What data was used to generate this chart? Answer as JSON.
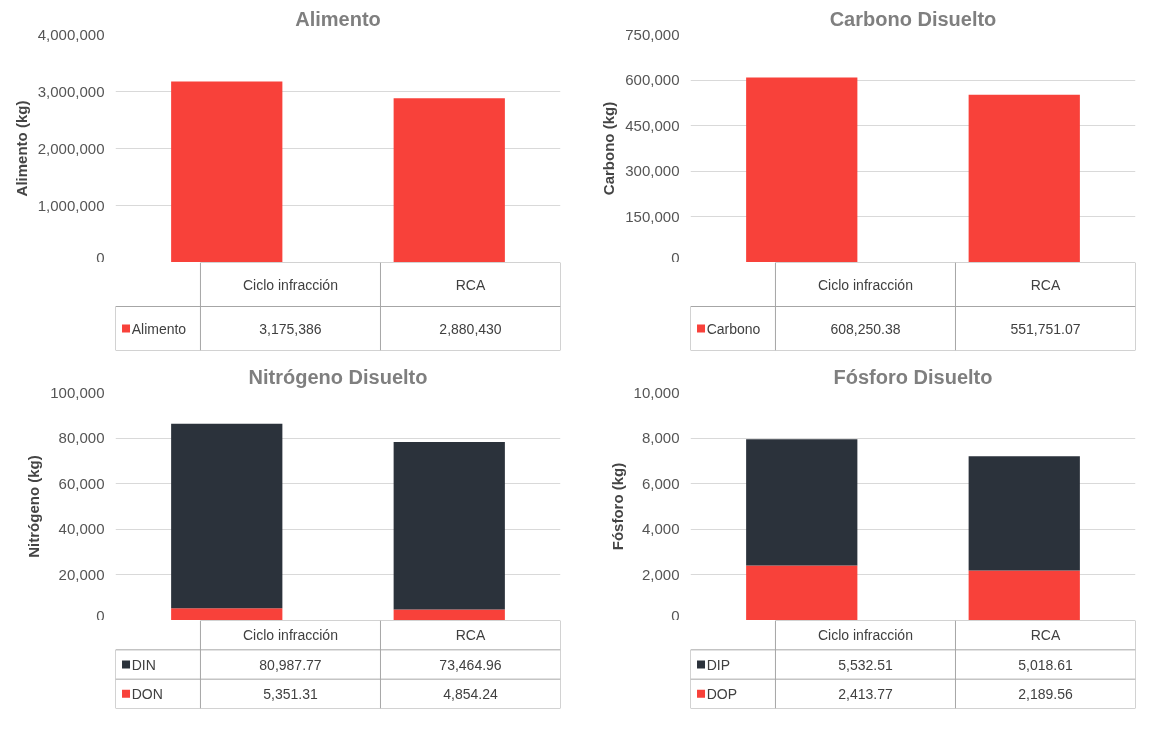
{
  "chart_data": [
    {
      "type": "bar",
      "title": "Alimento",
      "ylabel": "Alimento (kg)",
      "categories": [
        "Ciclo infracción",
        "RCA"
      ],
      "series": [
        {
          "name": "Alimento",
          "color": "#f8413a",
          "values": [
            3175386,
            2880430
          ],
          "value_labels": [
            "3,175,386",
            "2,880,430"
          ]
        }
      ],
      "legend": "bottom left",
      "ylim": [
        0,
        4000000
      ],
      "yticks": [
        0,
        {
          "value": 1000000,
          "label": "1,000,000"
        },
        {
          "value": 2000000,
          "label": "2,000,000"
        },
        {
          "value": 3000000,
          "label": "3,000,000"
        },
        {
          "value": 4000000,
          "label": "4,000,000"
        }
      ],
      "grid": "y"
    },
    {
      "type": "bar",
      "title": "Carbono Disuelto",
      "ylabel": "Carbono (kg)",
      "categories": [
        "Ciclo infracción",
        "RCA"
      ],
      "series": [
        {
          "name": "Carbono",
          "color": "#f8413a",
          "values": [
            608250.38,
            551751.07
          ],
          "value_labels": [
            "608,250.38",
            "551,751.07"
          ]
        }
      ],
      "legend": "bottom left",
      "ylim": [
        0,
        750000
      ],
      "yticks": [
        0,
        {
          "value": 150000,
          "label": "150,000"
        },
        {
          "value": 300000,
          "label": "300,000"
        },
        {
          "value": 450000,
          "label": "450,000"
        },
        {
          "value": 600000,
          "label": "600,000"
        },
        {
          "value": 750000,
          "label": "750,000"
        }
      ],
      "grid": "y"
    },
    {
      "type": "bar",
      "title": "Nitrógeno Disuelto",
      "ylabel": "Nitrógeno (kg)",
      "categories": [
        "Ciclo infracción",
        "RCA"
      ],
      "stacked": true,
      "series": [
        {
          "name": "DON",
          "color": "#f8413a",
          "values": [
            5351.31,
            4854.24
          ],
          "value_labels": [
            "5,351.31",
            "4,854.24"
          ]
        },
        {
          "name": "DIN",
          "color": "#2b323b",
          "values": [
            80987.77,
            73464.96
          ],
          "value_labels": [
            "80,987.77",
            "73,464.96"
          ]
        }
      ],
      "legend": "bottom left",
      "ylim": [
        0,
        100000
      ],
      "yticks": [
        0,
        {
          "value": 20000,
          "label": "20,000"
        },
        {
          "value": 40000,
          "label": "40,000"
        },
        {
          "value": 60000,
          "label": "60,000"
        },
        {
          "value": 80000,
          "label": "80,000"
        },
        {
          "value": 100000,
          "label": "100,000"
        }
      ],
      "grid": "y"
    },
    {
      "type": "bar",
      "title": "Fósforo Disuelto",
      "ylabel": "Fósforo (kg)",
      "categories": [
        "Ciclo infracción",
        "RCA"
      ],
      "stacked": true,
      "series": [
        {
          "name": "DOP",
          "color": "#f8413a",
          "values": [
            2413.77,
            2189.56
          ],
          "value_labels": [
            "2,413.77",
            "2,189.56"
          ]
        },
        {
          "name": "DIP",
          "color": "#2b323b",
          "values": [
            5532.51,
            5018.61
          ],
          "value_labels": [
            "5,532.51",
            "5,018.61"
          ]
        }
      ],
      "legend": "bottom left",
      "ylim": [
        0,
        10000
      ],
      "yticks": [
        0,
        {
          "value": 2000,
          "label": "2,000"
        },
        {
          "value": 4000,
          "label": "4,000"
        },
        {
          "value": 6000,
          "label": "6,000"
        },
        {
          "value": 8000,
          "label": "8,000"
        },
        {
          "value": 10000,
          "label": "10,000"
        }
      ],
      "grid": "y"
    }
  ]
}
